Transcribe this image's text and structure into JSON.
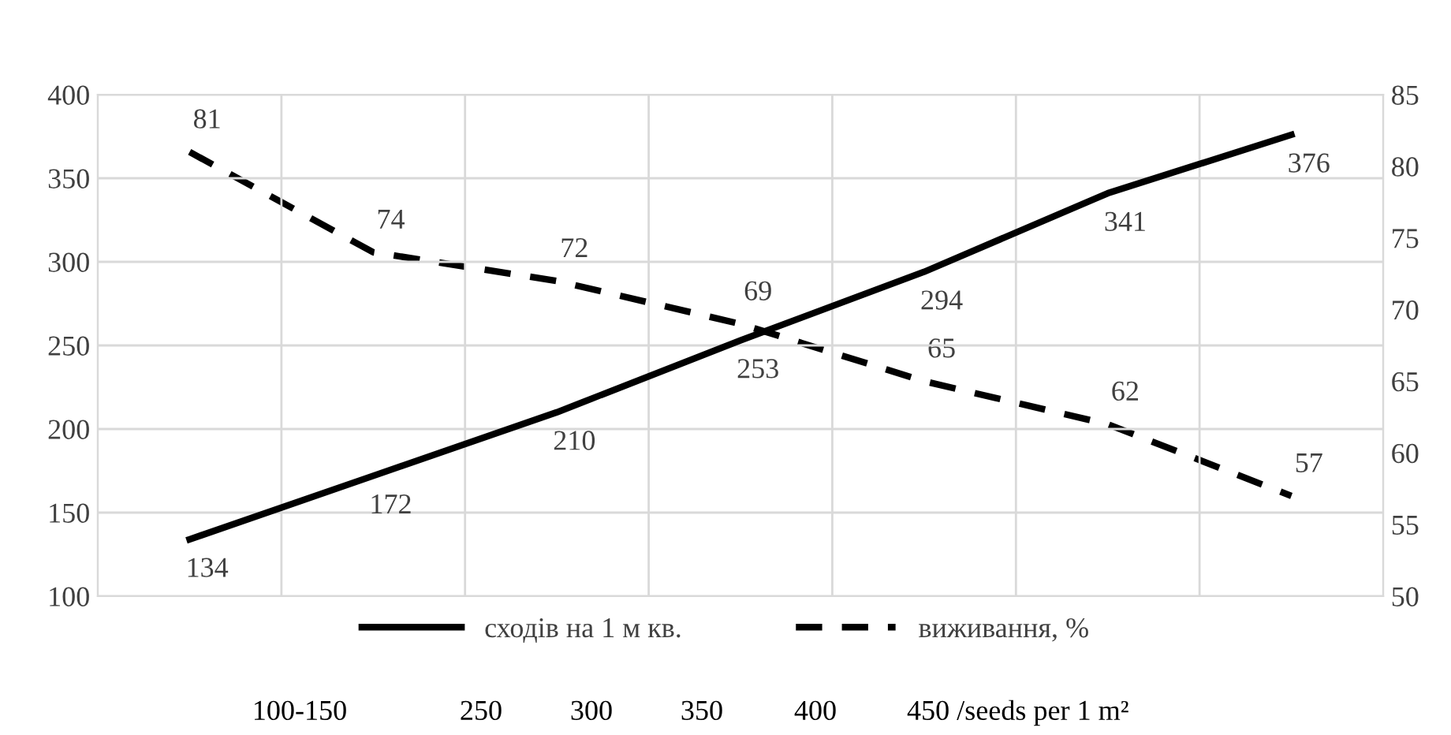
{
  "chart_data": {
    "type": "line",
    "categories": [
      null,
      null,
      null,
      null,
      null,
      null,
      null
    ],
    "series": [
      {
        "name": "сходів на 1 м кв.",
        "color": "#000000",
        "values": [
          134,
          172,
          210,
          253,
          294,
          341,
          376
        ],
        "line_style": "solid"
      },
      {
        "name": "виживання, %",
        "color": "#000000",
        "values": [
          81,
          74,
          72,
          69,
          65,
          62,
          57
        ],
        "axis": "y2",
        "line_style": "dashed"
      }
    ],
    "ylim": [
      100,
      400
    ],
    "yticks": [
      100,
      150,
      200,
      250,
      300,
      350,
      400
    ],
    "y2lim": [
      50,
      85
    ],
    "y2ticks": [
      50,
      55,
      60,
      65,
      70,
      75,
      80,
      85
    ],
    "grid": true,
    "legend": "bottom",
    "data_labels": true,
    "marker": "none",
    "annotations": [
      "100-150",
      "250",
      "300",
      "350",
      "400",
      "450 /seeds per 1 m²"
    ]
  }
}
